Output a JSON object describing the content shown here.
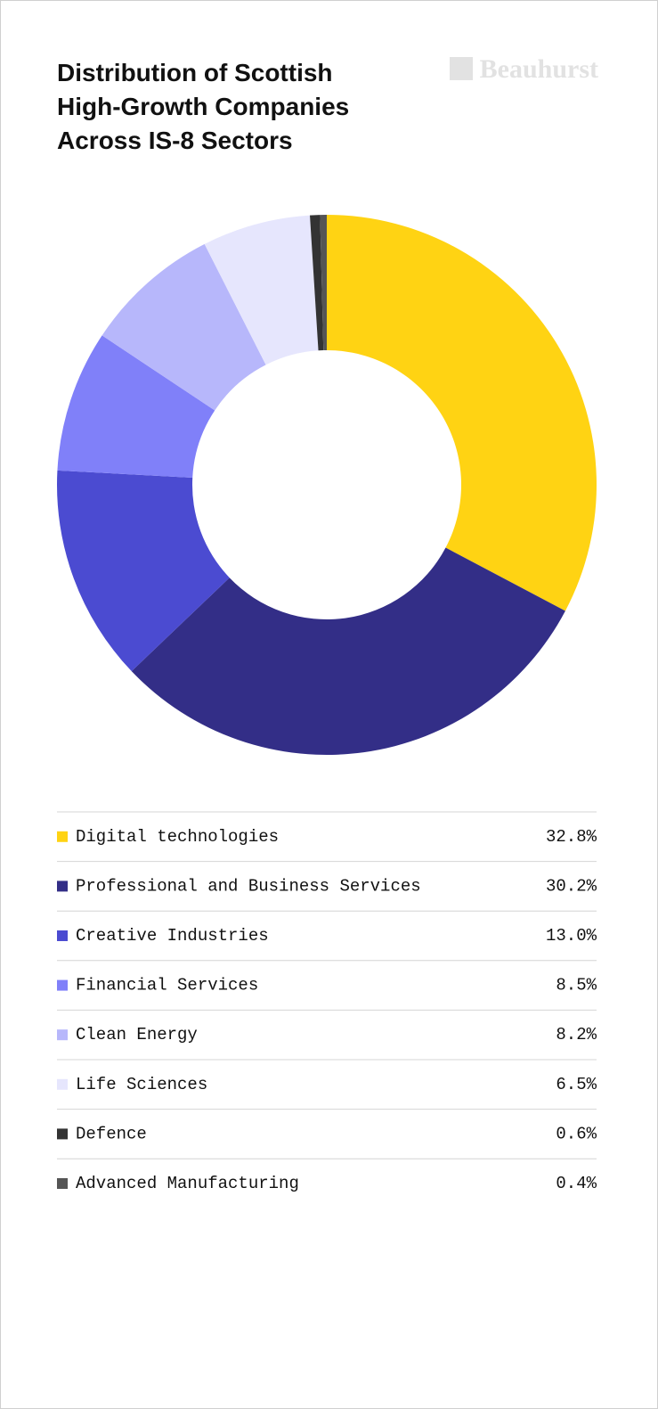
{
  "chart_data": {
    "type": "donut",
    "title": "Distribution of Scottish High-Growth Companies Across IS-8 Sectors",
    "logo": "Beauhurst",
    "categories": [
      "Digital technologies",
      "Professional and Business Services",
      "Creative Industries",
      "Financial Services",
      "Clean Energy",
      "Life Sciences",
      "Defence",
      "Advanced Manufacturing"
    ],
    "values": [
      32.8,
      30.2,
      13.0,
      8.5,
      8.2,
      6.5,
      0.6,
      0.4
    ],
    "value_labels": [
      "32.8%",
      "30.2%",
      "13.0%",
      "8.5%",
      "8.2%",
      "6.5%",
      "0.6%",
      "0.4%"
    ],
    "colors": [
      "#ffd313",
      "#332e87",
      "#4b4bd1",
      "#8080f9",
      "#b7b7fb",
      "#e6e6fd",
      "#333333",
      "#555555"
    ]
  }
}
